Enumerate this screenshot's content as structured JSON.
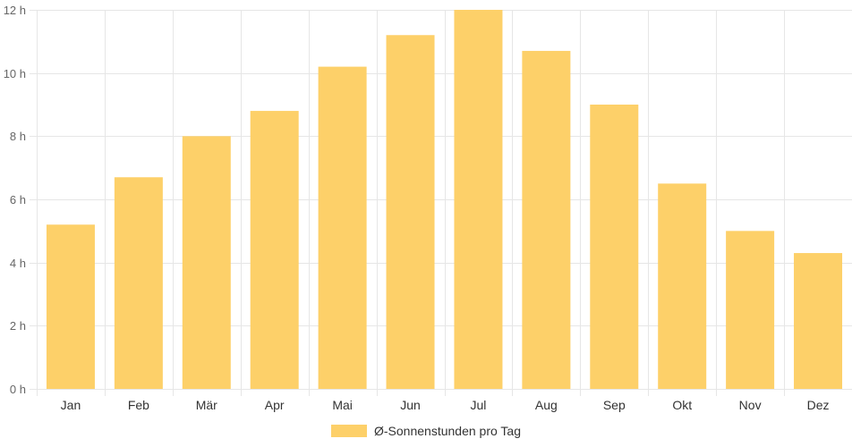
{
  "chart_data": {
    "type": "bar",
    "categories": [
      "Jan",
      "Feb",
      "Mär",
      "Apr",
      "Mai",
      "Jun",
      "Jul",
      "Aug",
      "Sep",
      "Okt",
      "Nov",
      "Dez"
    ],
    "series": [
      {
        "name": "Ø-Sonnenstunden pro Tag",
        "values": [
          5.2,
          6.7,
          8.0,
          8.8,
          10.2,
          11.2,
          12.0,
          10.7,
          9.0,
          6.5,
          5.0,
          4.3
        ],
        "color": "#fdd069"
      }
    ],
    "ylim": [
      0,
      12
    ],
    "y_ticks": [
      0,
      2,
      4,
      6,
      8,
      10,
      12
    ],
    "y_tick_labels": [
      "0 h",
      "2 h",
      "4 h",
      "6 h",
      "8 h",
      "10 h",
      "12 h"
    ],
    "grid": true,
    "grid_color": "#e6e6e6",
    "legend_position": "bottom"
  }
}
